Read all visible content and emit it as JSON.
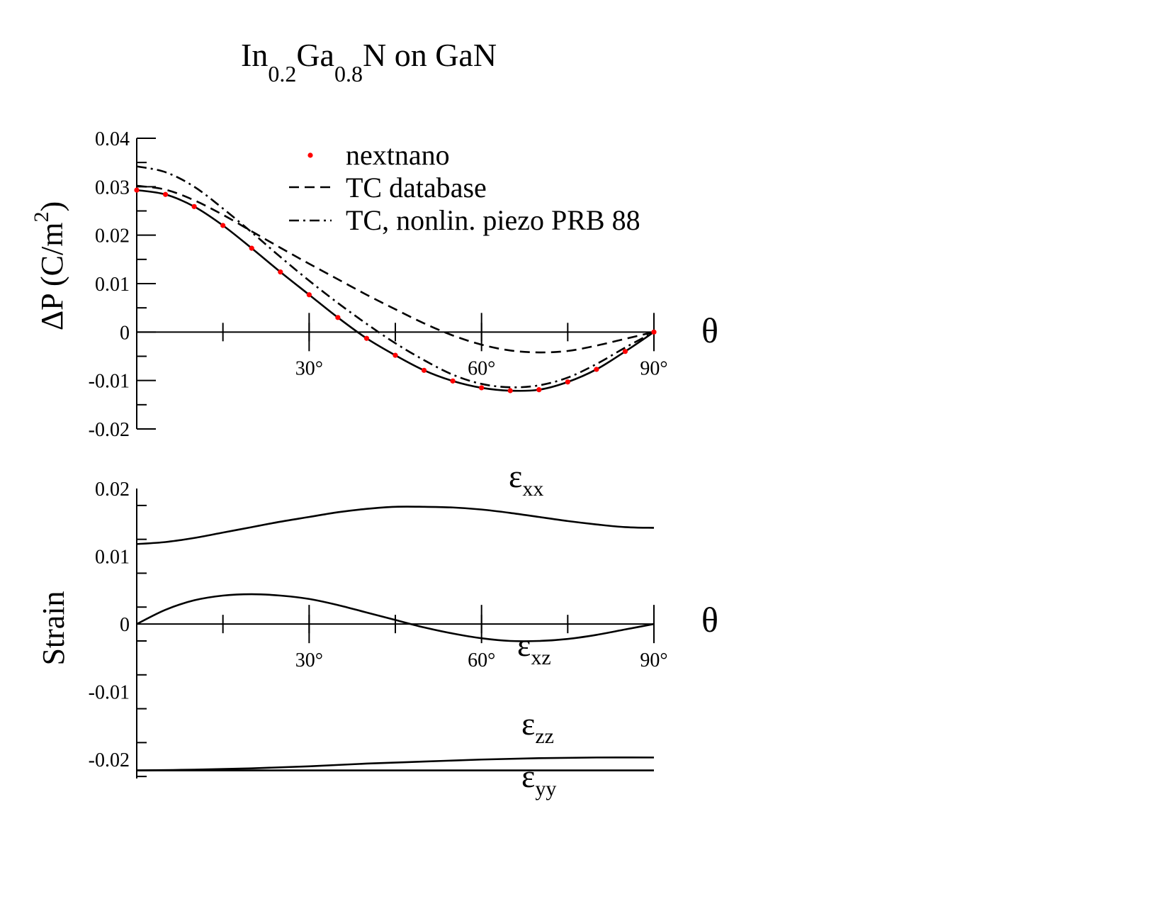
{
  "title": {
    "base1": "In",
    "sub1": "0.2",
    "base2": "Ga",
    "sub2": "0.8",
    "base3": "N on GaN"
  },
  "chart_data": [
    {
      "type": "line",
      "ylabel": "ΔP (C/m²)",
      "ylabel_parts": {
        "main": "ΔP (C/m",
        "sup": "2",
        "close": ")"
      },
      "xlabel": "θ",
      "xlim": [
        0,
        90
      ],
      "ylim": [
        -0.02,
        0.04
      ],
      "yticks": [
        -0.02,
        -0.01,
        0,
        0.01,
        0.02,
        0.03,
        0.04
      ],
      "ytick_labels": [
        "-0.02",
        "-0.01",
        "0",
        "0.01",
        "0.02",
        "0.03",
        "0.04"
      ],
      "xticks": [
        30,
        60,
        90
      ],
      "xtick_labels": [
        "30°",
        "60°",
        "90°"
      ],
      "legend_position": "top-right",
      "grid": false,
      "series": [
        {
          "name": "nextnano",
          "style": "markers",
          "color": "#ff0000",
          "x": [
            0,
            5,
            10,
            15,
            20,
            25,
            30,
            35,
            40,
            45,
            50,
            55,
            60,
            65,
            70,
            75,
            80,
            85,
            90
          ],
          "y": [
            0.0293,
            0.0284,
            0.0259,
            0.022,
            0.0173,
            0.0124,
            0.0077,
            0.003,
            -0.0013,
            -0.0048,
            -0.0079,
            -0.0101,
            -0.0115,
            -0.0121,
            -0.0119,
            -0.0103,
            -0.0077,
            -0.004,
            0.0
          ]
        },
        {
          "name": "",
          "style": "solid",
          "color": "#000000",
          "x": [
            0,
            5,
            10,
            15,
            20,
            25,
            30,
            35,
            40,
            45,
            50,
            55,
            60,
            65,
            70,
            75,
            80,
            85,
            90
          ],
          "y": [
            0.0293,
            0.0284,
            0.0259,
            0.022,
            0.0173,
            0.0124,
            0.0077,
            0.003,
            -0.0013,
            -0.0048,
            -0.0079,
            -0.0101,
            -0.0115,
            -0.0121,
            -0.0119,
            -0.0103,
            -0.0077,
            -0.004,
            0.0
          ]
        },
        {
          "name": "TC database",
          "style": "dashed",
          "color": "#000000",
          "x": [
            0,
            5,
            10,
            15,
            20,
            25,
            30,
            35,
            40,
            45,
            50,
            55,
            60,
            65,
            70,
            75,
            80,
            85,
            90
          ],
          "y": [
            0.0302,
            0.0294,
            0.0272,
            0.0242,
            0.0208,
            0.0174,
            0.0141,
            0.0109,
            0.0077,
            0.0047,
            0.0018,
            -0.0007,
            -0.0026,
            -0.0038,
            -0.0042,
            -0.0039,
            -0.0028,
            -0.0014,
            0.0
          ]
        },
        {
          "name": "TC, nonlin. piezo PRB 88",
          "style": "dashdot",
          "color": "#000000",
          "x": [
            0,
            5,
            10,
            15,
            20,
            25,
            30,
            35,
            40,
            45,
            50,
            55,
            60,
            65,
            70,
            75,
            80,
            85,
            90
          ],
          "y": [
            0.0342,
            0.033,
            0.03,
            0.0255,
            0.0206,
            0.0155,
            0.0106,
            0.006,
            0.0017,
            -0.0023,
            -0.0058,
            -0.0088,
            -0.0107,
            -0.0114,
            -0.011,
            -0.0094,
            -0.0066,
            -0.0032,
            0.0
          ]
        }
      ]
    },
    {
      "type": "line",
      "ylabel": "Strain",
      "xlabel": "θ",
      "xlim": [
        0,
        90
      ],
      "ylim": [
        -0.0228,
        0.02
      ],
      "yticks": [
        -0.02,
        -0.01,
        0,
        0.01,
        0.02
      ],
      "ytick_labels": [
        "-0.02",
        "-0.01",
        "0",
        "0.01",
        "0.02"
      ],
      "xticks": [
        30,
        60,
        90
      ],
      "xtick_labels": [
        "30°",
        "60°",
        "90°"
      ],
      "grid": false,
      "series": [
        {
          "name": "εxx",
          "label_parts": {
            "main": "ε",
            "sub": "xx"
          },
          "style": "solid",
          "color": "#000000",
          "x": [
            0,
            5,
            10,
            15,
            20,
            25,
            30,
            35,
            40,
            45,
            50,
            55,
            60,
            65,
            70,
            75,
            80,
            85,
            90
          ],
          "y": [
            0.0118,
            0.0121,
            0.0127,
            0.0135,
            0.0143,
            0.0151,
            0.0158,
            0.0165,
            0.017,
            0.0173,
            0.0173,
            0.0172,
            0.0169,
            0.0164,
            0.0158,
            0.0152,
            0.0147,
            0.0143,
            0.0142
          ]
        },
        {
          "name": "εxz",
          "label_parts": {
            "main": "ε",
            "sub": "xz"
          },
          "style": "solid",
          "color": "#000000",
          "x": [
            0,
            5,
            10,
            15,
            20,
            25,
            30,
            35,
            40,
            45,
            50,
            55,
            60,
            65,
            70,
            75,
            80,
            85,
            90
          ],
          "y": [
            0.0,
            0.0021,
            0.0035,
            0.0042,
            0.0044,
            0.0042,
            0.0037,
            0.0028,
            0.0017,
            0.0006,
            -0.0005,
            -0.0014,
            -0.0021,
            -0.0025,
            -0.0025,
            -0.0022,
            -0.0016,
            -0.0008,
            0.0
          ]
        },
        {
          "name": "εzz",
          "label_parts": {
            "main": "ε",
            "sub": "zz"
          },
          "style": "solid",
          "color": "#000000",
          "x": [
            0,
            10,
            20,
            30,
            40,
            50,
            60,
            70,
            80,
            90
          ],
          "y": [
            -0.0216,
            -0.0215,
            -0.0213,
            -0.021,
            -0.0206,
            -0.0203,
            -0.02,
            -0.0198,
            -0.0197,
            -0.0197
          ]
        },
        {
          "name": "εyy",
          "label_parts": {
            "main": "ε",
            "sub": "yy"
          },
          "style": "solid",
          "color": "#000000",
          "x": [
            0,
            90
          ],
          "y": [
            -0.0216,
            -0.0216
          ]
        }
      ]
    }
  ]
}
